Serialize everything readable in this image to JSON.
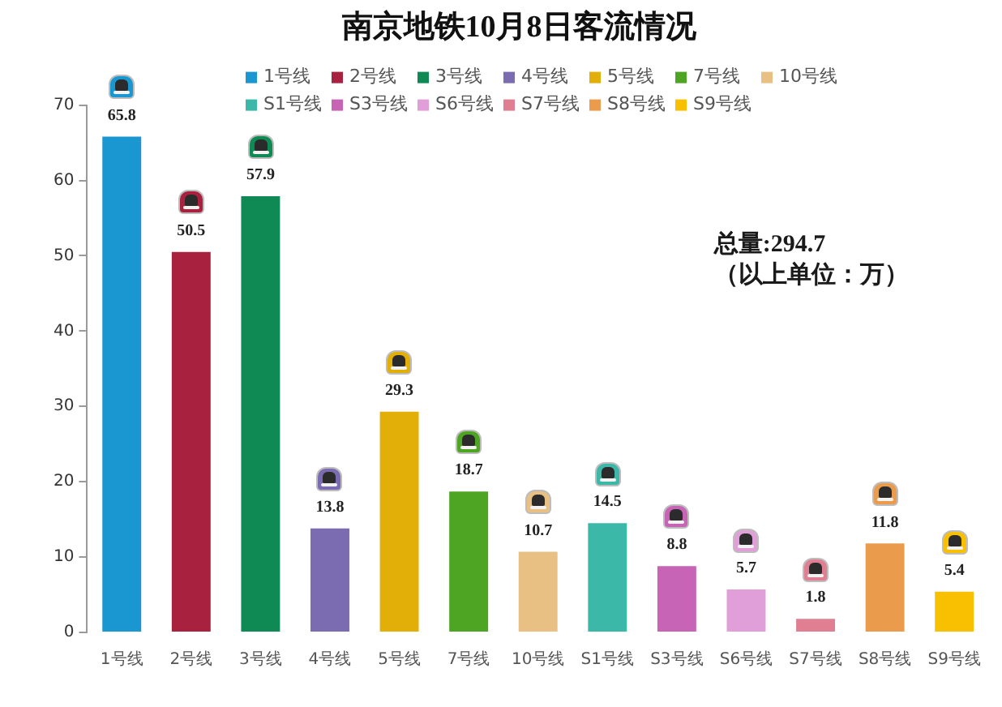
{
  "chart_data": {
    "type": "bar",
    "title": "南京地铁10月8日客流情况",
    "categories": [
      "1号线",
      "2号线",
      "3号线",
      "4号线",
      "5号线",
      "7号线",
      "10号线",
      "S1号线",
      "S3号线",
      "S6号线",
      "S7号线",
      "S8号线",
      "S9号线"
    ],
    "series": [
      {
        "name": "1号线",
        "color": "#1a96d0",
        "values": [
          65.8,
          null,
          null,
          null,
          null,
          null,
          null,
          null,
          null,
          null,
          null,
          null,
          null
        ]
      },
      {
        "name": "2号线",
        "color": "#a8213f",
        "values": [
          null,
          50.5,
          null,
          null,
          null,
          null,
          null,
          null,
          null,
          null,
          null,
          null,
          null
        ]
      },
      {
        "name": "3号线",
        "color": "#108a55",
        "values": [
          null,
          null,
          57.9,
          null,
          null,
          null,
          null,
          null,
          null,
          null,
          null,
          null,
          null
        ]
      },
      {
        "name": "4号线",
        "color": "#7b6bb0",
        "values": [
          null,
          null,
          null,
          13.8,
          null,
          null,
          null,
          null,
          null,
          null,
          null,
          null,
          null
        ]
      },
      {
        "name": "5号线",
        "color": "#e2ae08",
        "values": [
          null,
          null,
          null,
          null,
          29.3,
          null,
          null,
          null,
          null,
          null,
          null,
          null,
          null
        ]
      },
      {
        "name": "7号线",
        "color": "#4ea423",
        "values": [
          null,
          null,
          null,
          null,
          null,
          18.7,
          null,
          null,
          null,
          null,
          null,
          null,
          null
        ]
      },
      {
        "name": "10号线",
        "color": "#e8c084",
        "values": [
          null,
          null,
          null,
          null,
          null,
          null,
          10.7,
          null,
          null,
          null,
          null,
          null,
          null
        ]
      },
      {
        "name": "S1号线",
        "color": "#3cb8a8",
        "values": [
          null,
          null,
          null,
          null,
          null,
          null,
          null,
          14.5,
          null,
          null,
          null,
          null,
          null
        ]
      },
      {
        "name": "S3号线",
        "color": "#c764b6",
        "values": [
          null,
          null,
          null,
          null,
          null,
          null,
          null,
          null,
          8.8,
          null,
          null,
          null,
          null
        ]
      },
      {
        "name": "S6号线",
        "color": "#e09fd8",
        "values": [
          null,
          null,
          null,
          null,
          null,
          null,
          null,
          null,
          null,
          5.7,
          null,
          null,
          null
        ]
      },
      {
        "name": "S7号线",
        "color": "#e07f92",
        "values": [
          null,
          null,
          null,
          null,
          null,
          null,
          null,
          null,
          null,
          null,
          1.8,
          null,
          null
        ]
      },
      {
        "name": "S8号线",
        "color": "#eb9b4c",
        "values": [
          null,
          null,
          null,
          null,
          null,
          null,
          null,
          null,
          null,
          null,
          null,
          11.8,
          null
        ]
      },
      {
        "name": "S9号线",
        "color": "#f8c000",
        "values": [
          null,
          null,
          null,
          null,
          null,
          null,
          null,
          null,
          null,
          null,
          null,
          null,
          5.4
        ]
      }
    ],
    "ylim": [
      0,
      70
    ],
    "yticks": [
      0,
      10,
      20,
      30,
      40,
      50,
      60,
      70
    ],
    "grid": false,
    "legend": "top",
    "data_labels": true,
    "annotations": [
      "总量:294.7",
      "（以上单位：万）"
    ]
  }
}
